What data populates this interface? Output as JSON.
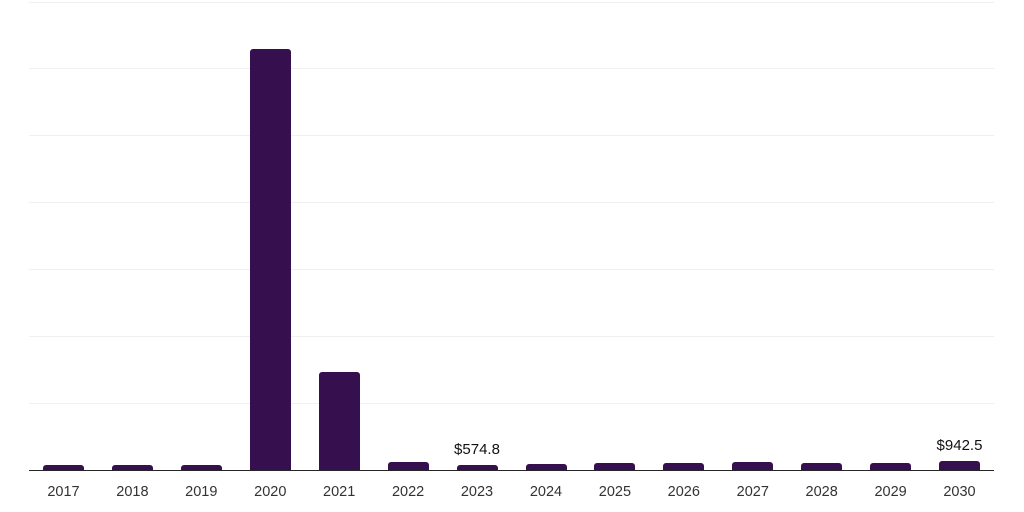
{
  "chart_data": {
    "type": "bar",
    "title": "",
    "xlabel": "",
    "ylabel": "",
    "categories": [
      "2017",
      "2018",
      "2019",
      "2020",
      "2021",
      "2022",
      "2023",
      "2024",
      "2025",
      "2026",
      "2027",
      "2028",
      "2029",
      "2030"
    ],
    "values": [
      480,
      480,
      480,
      44000,
      10300,
      790,
      574.8,
      680,
      690,
      740,
      890,
      690,
      780,
      942.5
    ],
    "value_labels": [
      "",
      "",
      "",
      "",
      "",
      "",
      "$574.8",
      "",
      "",
      "",
      "",
      "",
      "",
      "$942.5"
    ],
    "ylim": [
      0,
      49000
    ],
    "gridline_interval": 7000,
    "grid": "horizontal-only",
    "legend": "none",
    "y_axis_tick_labels_visible": false,
    "colors": {
      "bar": "#36104E",
      "gridline": "#f0f0f0",
      "axis_line": "#262626",
      "tick_label": "#333333",
      "value_label": "#111111",
      "background": "#ffffff"
    }
  }
}
